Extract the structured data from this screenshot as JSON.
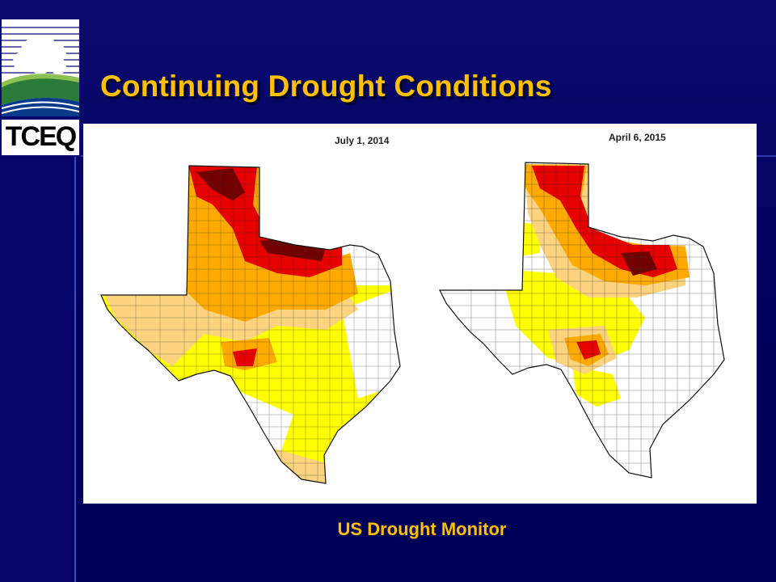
{
  "slide": {
    "title": "Continuing Drought Conditions",
    "caption": "US Drought Monitor"
  },
  "logo": {
    "text": "TCEQ"
  },
  "maps": [
    {
      "date": "July 1, 2014"
    },
    {
      "date": "April 6, 2015"
    }
  ],
  "colors": {
    "title": "#ffc000",
    "background": "#000066",
    "d0": "#ffff00",
    "d1": "#fcd37f",
    "d2": "#ffaa00",
    "d3": "#e60000",
    "d4": "#730000"
  }
}
